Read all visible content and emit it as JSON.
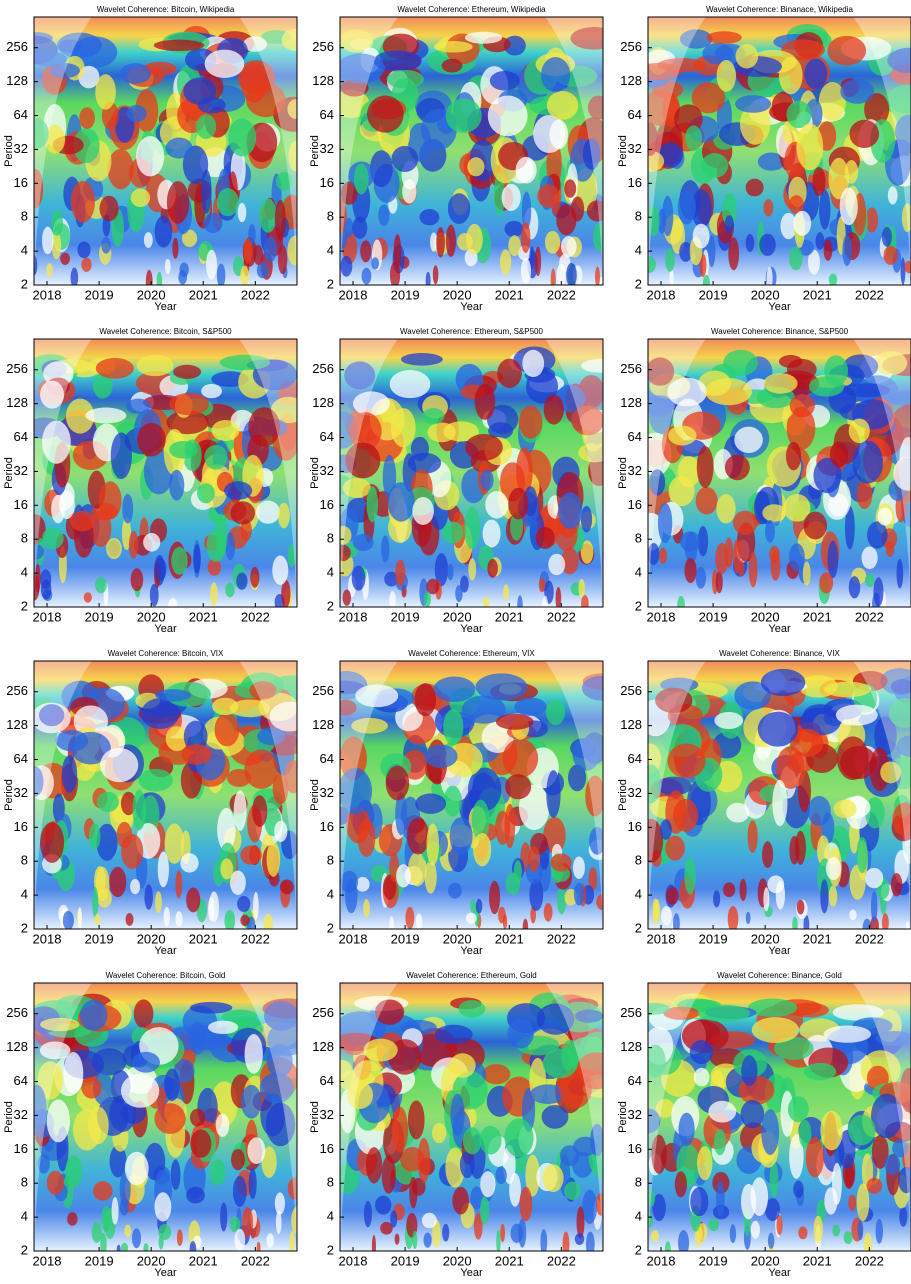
{
  "chart_data": [
    {
      "type": "heatmap",
      "title": "Wavelet Coherence: Bitcoin, Wikipedia",
      "xlabel": "Year",
      "ylabel": "Period",
      "xlim": [
        2017.75,
        2022.8
      ],
      "xticks": [
        2018,
        2019,
        2020,
        2021,
        2022
      ],
      "ylim": [
        2,
        480
      ],
      "yticks": [
        2,
        4,
        8,
        16,
        32,
        64,
        128,
        256
      ],
      "ylog": 2
    },
    {
      "type": "heatmap",
      "title": "Wavelet Coherence: Ethereum, Wikipedia",
      "xlabel": "Year",
      "ylabel": "Period",
      "xlim": [
        2017.75,
        2022.8
      ],
      "xticks": [
        2018,
        2019,
        2020,
        2021,
        2022
      ],
      "ylim": [
        2,
        480
      ],
      "yticks": [
        2,
        4,
        8,
        16,
        32,
        64,
        128,
        256
      ],
      "ylog": 2
    },
    {
      "type": "heatmap",
      "title": "Wavelet Coherence: Binanace, Wikipedia",
      "xlabel": "Year",
      "ylabel": "Period",
      "xlim": [
        2017.75,
        2022.8
      ],
      "xticks": [
        2018,
        2019,
        2020,
        2021,
        2022
      ],
      "ylim": [
        2,
        480
      ],
      "yticks": [
        2,
        4,
        8,
        16,
        32,
        64,
        128,
        256
      ],
      "ylog": 2
    },
    {
      "type": "heatmap",
      "title": "Wavelet Coherence: Bitcoin, S&P500",
      "xlabel": "Year",
      "ylabel": "Period",
      "xlim": [
        2017.75,
        2022.8
      ],
      "xticks": [
        2018,
        2019,
        2020,
        2021,
        2022
      ],
      "ylim": [
        2,
        480
      ],
      "yticks": [
        2,
        4,
        8,
        16,
        32,
        64,
        128,
        256
      ],
      "ylog": 2
    },
    {
      "type": "heatmap",
      "title": "Wavelet Coherence: Ethereum, S&P500",
      "xlabel": "Year",
      "ylabel": "Period",
      "xlim": [
        2017.75,
        2022.8
      ],
      "xticks": [
        2018,
        2019,
        2020,
        2021,
        2022
      ],
      "ylim": [
        2,
        480
      ],
      "yticks": [
        2,
        4,
        8,
        16,
        32,
        64,
        128,
        256
      ],
      "ylog": 2
    },
    {
      "type": "heatmap",
      "title": "Wavelet Coherence: Binance, S&P500",
      "xlabel": "Year",
      "ylabel": "Period",
      "xlim": [
        2017.75,
        2022.8
      ],
      "xticks": [
        2018,
        2019,
        2020,
        2021,
        2022
      ],
      "ylim": [
        2,
        480
      ],
      "yticks": [
        2,
        4,
        8,
        16,
        32,
        64,
        128,
        256
      ],
      "ylog": 2
    },
    {
      "type": "heatmap",
      "title": "Wavelet Coherence: Bitcoin, VIX",
      "xlabel": "Year",
      "ylabel": "Period",
      "xlim": [
        2017.75,
        2022.8
      ],
      "xticks": [
        2018,
        2019,
        2020,
        2021,
        2022
      ],
      "ylim": [
        2,
        480
      ],
      "yticks": [
        2,
        4,
        8,
        16,
        32,
        64,
        128,
        256
      ],
      "ylog": 2
    },
    {
      "type": "heatmap",
      "title": "Wavelet Coherence: Ethereum, VIX",
      "xlabel": "Year",
      "ylabel": "Period",
      "xlim": [
        2017.75,
        2022.8
      ],
      "xticks": [
        2018,
        2019,
        2020,
        2021,
        2022
      ],
      "ylim": [
        2,
        480
      ],
      "yticks": [
        2,
        4,
        8,
        16,
        32,
        64,
        128,
        256
      ],
      "ylog": 2
    },
    {
      "type": "heatmap",
      "title": "Wavelet Coherence: Binance, VIX",
      "xlabel": "Year",
      "ylabel": "Period",
      "xlim": [
        2017.75,
        2022.8
      ],
      "xticks": [
        2018,
        2019,
        2020,
        2021,
        2022
      ],
      "ylim": [
        2,
        480
      ],
      "yticks": [
        2,
        4,
        8,
        16,
        32,
        64,
        128,
        256
      ],
      "ylog": 2
    },
    {
      "type": "heatmap",
      "title": "Wavelet Coherence: Bitcoin, Gold",
      "xlabel": "Year",
      "ylabel": "Period",
      "xlim": [
        2017.75,
        2022.8
      ],
      "xticks": [
        2018,
        2019,
        2020,
        2021,
        2022
      ],
      "ylim": [
        2,
        480
      ],
      "yticks": [
        2,
        4,
        8,
        16,
        32,
        64,
        128,
        256
      ],
      "ylog": 2
    },
    {
      "type": "heatmap",
      "title": "Wavelet Coherence: Ethereum, Gold",
      "xlabel": "Year",
      "ylabel": "Period",
      "xlim": [
        2017.75,
        2022.8
      ],
      "xticks": [
        2018,
        2019,
        2020,
        2021,
        2022
      ],
      "ylim": [
        2,
        480
      ],
      "yticks": [
        2,
        4,
        8,
        16,
        32,
        64,
        128,
        256
      ],
      "ylog": 2
    },
    {
      "type": "heatmap",
      "title": "Wavelet Coherence: Binance, Gold",
      "xlabel": "Year",
      "ylabel": "Period",
      "xlim": [
        2017.75,
        2022.8
      ],
      "xticks": [
        2018,
        2019,
        2020,
        2021,
        2022
      ],
      "ylim": [
        2,
        480
      ],
      "yticks": [
        2,
        4,
        8,
        16,
        32,
        64,
        128,
        256
      ],
      "ylog": 2
    }
  ]
}
